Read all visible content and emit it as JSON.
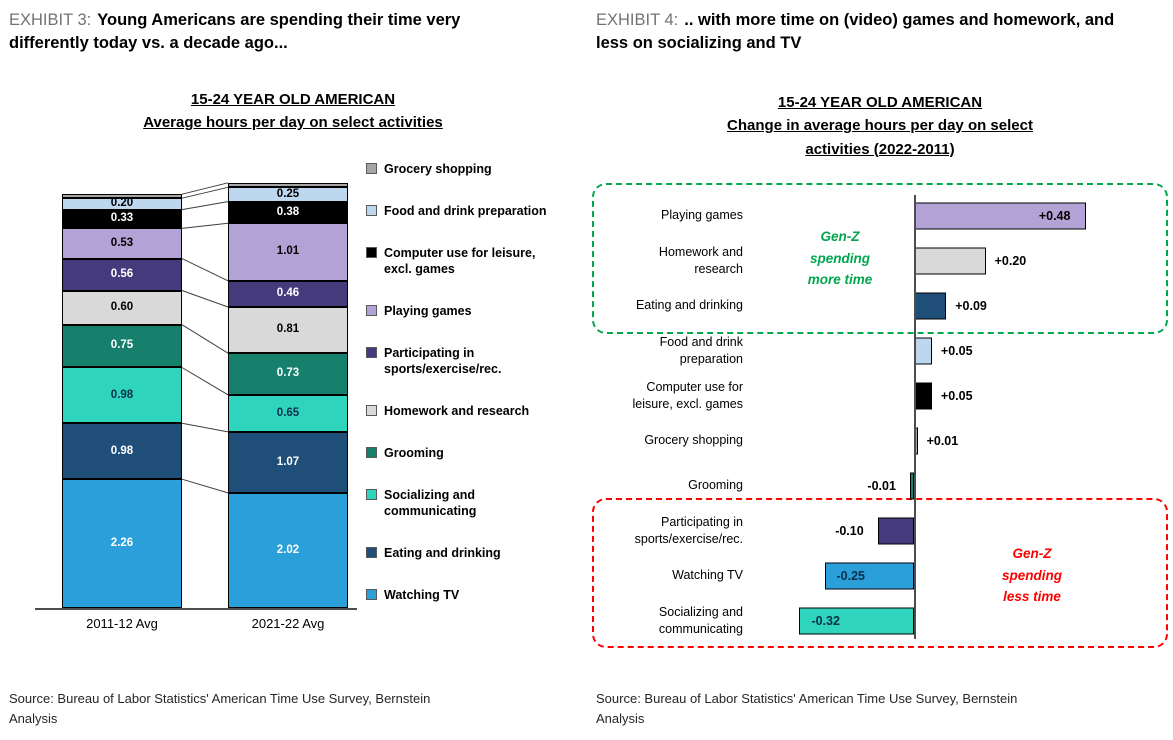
{
  "exhibit3": {
    "label": "EXHIBIT 3:",
    "title": "Young Americans are spending their time very differently today vs. a decade ago...",
    "chart_title_line1": "15-24 YEAR OLD AMERICAN",
    "chart_title_line2": "Average hours per day on select activities",
    "source": "Source: Bureau of Labor Statistics' American Time Use Survey, Bernstein Analysis"
  },
  "exhibit4": {
    "label": "EXHIBIT 4:",
    "title": ".. with more time on (video) games and homework, and less on socializing and TV",
    "chart_title_line1": "15-24 YEAR OLD AMERICAN",
    "chart_title_line2": "Change in average hours per day on select",
    "chart_title_line3": "activities (2022-2011)",
    "source": "Source: Bureau of Labor Statistics' American Time Use Survey, Bernstein Analysis"
  },
  "chart_data": [
    {
      "type": "bar",
      "subtype": "stacked_column",
      "title": "15-24 YEAR OLD AMERICAN — Average hours per day on select activities",
      "unit": "hours per day",
      "categories": [
        "2011-12 Avg",
        "2021-22 Avg"
      ],
      "series_order": "bottom_to_top",
      "series": [
        {
          "name": "Watching TV",
          "color": "#2b9fd9",
          "label_color": "#ffffff",
          "values": [
            2.26,
            2.02
          ]
        },
        {
          "name": "Eating and drinking",
          "color": "#1f4e79",
          "label_color": "#ffffff",
          "values": [
            0.98,
            1.07
          ]
        },
        {
          "name": "Socializing and communicating",
          "color": "#2fd4bd",
          "label_color": "#0c3049",
          "values": [
            0.98,
            0.65
          ]
        },
        {
          "name": "Grooming",
          "color": "#17806c",
          "label_color": "#ffffff",
          "values": [
            0.75,
            0.73
          ]
        },
        {
          "name": "Homework and research",
          "color": "#d9d9d9",
          "label_color": "#000000",
          "values": [
            0.6,
            0.81
          ]
        },
        {
          "name": "Participating in sports/exercise/rec.",
          "color": "#443a7c",
          "label_color": "#ffffff",
          "values": [
            0.56,
            0.46
          ]
        },
        {
          "name": "Playing games",
          "color": "#b3a2d6",
          "label_color": "#000000",
          "values": [
            0.53,
            1.01
          ]
        },
        {
          "name": "Computer use for leisure, excl. games",
          "color": "#000000",
          "label_color": "#ffffff",
          "values": [
            0.33,
            0.38
          ]
        },
        {
          "name": "Food and drink preparation",
          "color": "#bdd7ee",
          "label_color": "#000000",
          "values": [
            0.2,
            0.25
          ]
        },
        {
          "name": "Grocery shopping",
          "color": "#a6a6a6",
          "label_color": "#000000",
          "values": [
            0.07,
            0.08
          ],
          "value_labels_shown": false
        }
      ],
      "legend_position": "right",
      "legend_order": [
        "Grocery shopping",
        "Food and drink preparation",
        "Computer use for leisure, excl. games",
        "Playing games",
        "Participating in sports/exercise/rec.",
        "Homework and research",
        "Grooming",
        "Socializing and communicating",
        "Eating and drinking",
        "Watching TV"
      ]
    },
    {
      "type": "bar",
      "subtype": "horizontal_diverging",
      "title": "15-24 YEAR OLD AMERICAN — Change in average hours per day on select activities (2022-2011)",
      "unit": "hours per day",
      "zero_axis": true,
      "rows": [
        {
          "label": "Playing games",
          "value": 0.48,
          "display": "+0.48",
          "color": "#b3a2d6",
          "label_pos": "inside",
          "label_color": "#000000"
        },
        {
          "label": "Homework and research",
          "value": 0.2,
          "display": "+0.20",
          "color": "#d9d9d9",
          "label_pos": "outside",
          "label_color": "#000000"
        },
        {
          "label": "Eating and drinking",
          "value": 0.09,
          "display": "+0.09",
          "color": "#1f4e79",
          "label_pos": "outside",
          "label_color": "#000000"
        },
        {
          "label": "Food and drink preparation",
          "value": 0.05,
          "display": "+0.05",
          "color": "#bdd7ee",
          "label_pos": "outside",
          "label_color": "#000000"
        },
        {
          "label": "Computer use for leisure, excl. games",
          "value": 0.05,
          "display": "+0.05",
          "color": "#000000",
          "label_pos": "outside",
          "label_color": "#000000"
        },
        {
          "label": "Grocery shopping",
          "value": 0.01,
          "display": "+0.01",
          "color": "#a6a6a6",
          "label_pos": "outside",
          "label_color": "#000000"
        },
        {
          "label": "Grooming",
          "value": -0.01,
          "display": "-0.01",
          "color": "#17806c",
          "label_pos": "outside",
          "label_color": "#000000"
        },
        {
          "label": "Participating in sports/exercise/rec.",
          "value": -0.1,
          "display": "-0.10",
          "color": "#443a7c",
          "label_pos": "outside",
          "label_color": "#000000"
        },
        {
          "label": "Watching TV",
          "value": -0.25,
          "display": "-0.25",
          "color": "#2b9fd9",
          "label_pos": "inside",
          "label_color": "#0c3049"
        },
        {
          "label": "Socializing and communicating",
          "value": -0.32,
          "display": "-0.32",
          "color": "#2fd4bd",
          "label_pos": "inside",
          "label_color": "#0c3049"
        }
      ],
      "annotations": [
        {
          "text": "Gen-Z spending more time",
          "text_lines": [
            "Gen-Z",
            "spending",
            "more time"
          ],
          "color": "#00a74f",
          "box": "green dashed box around top 3 rows"
        },
        {
          "text": "Gen-Z spending less time",
          "text_lines": [
            "Gen-Z",
            "spending",
            "less time"
          ],
          "color": "#fe0000",
          "box": "red dashed box around bottom 3 rows"
        }
      ]
    }
  ]
}
